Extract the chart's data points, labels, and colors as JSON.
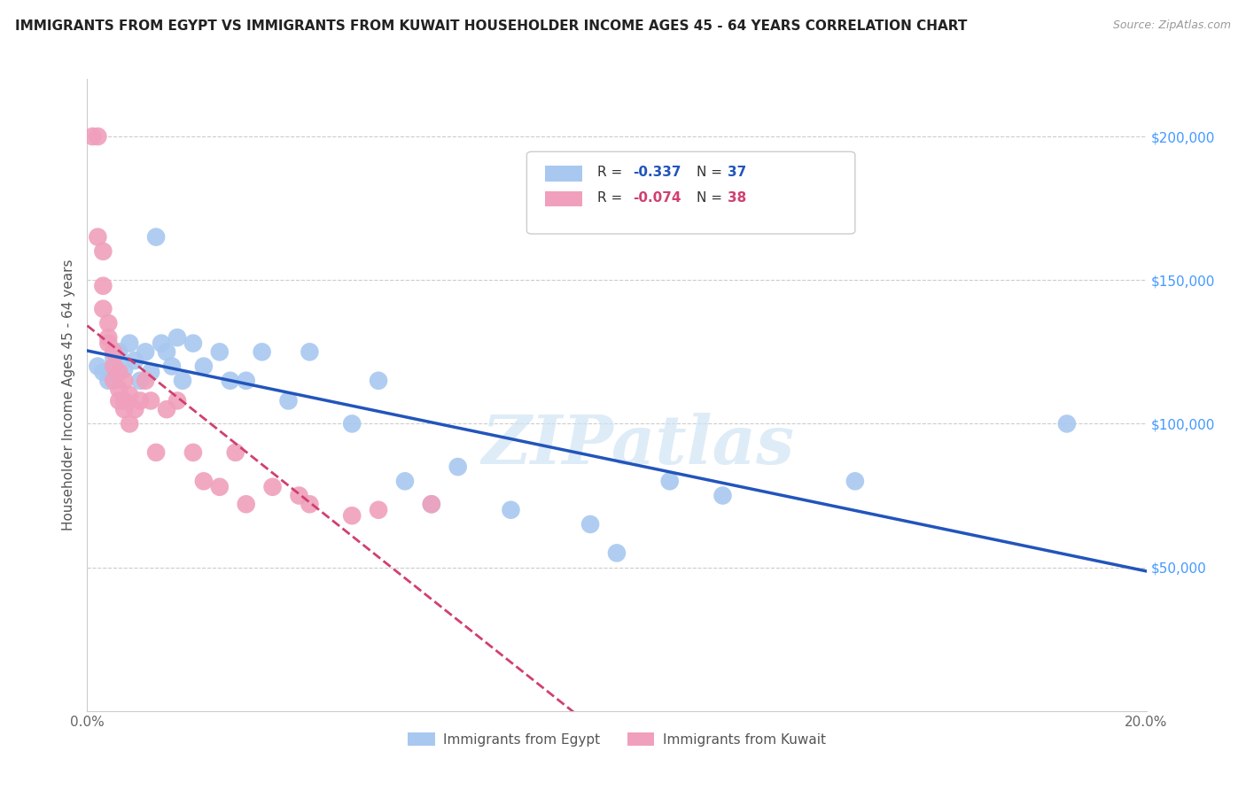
{
  "title": "IMMIGRANTS FROM EGYPT VS IMMIGRANTS FROM KUWAIT HOUSEHOLDER INCOME AGES 45 - 64 YEARS CORRELATION CHART",
  "source": "Source: ZipAtlas.com",
  "ylabel": "Householder Income Ages 45 - 64 years",
  "xmin": 0.0,
  "xmax": 0.2,
  "ymin": 0,
  "ymax": 220000,
  "egypt_color": "#a8c8f0",
  "kuwait_color": "#f0a0bc",
  "egypt_line_color": "#2255bb",
  "kuwait_line_color": "#d04070",
  "watermark": "ZIPatlas",
  "egypt_points_x": [
    0.002,
    0.003,
    0.004,
    0.005,
    0.006,
    0.007,
    0.008,
    0.009,
    0.01,
    0.011,
    0.012,
    0.013,
    0.014,
    0.015,
    0.016,
    0.017,
    0.018,
    0.02,
    0.022,
    0.025,
    0.027,
    0.03,
    0.033,
    0.038,
    0.042,
    0.05,
    0.055,
    0.06,
    0.065,
    0.07,
    0.08,
    0.095,
    0.1,
    0.11,
    0.12,
    0.145,
    0.185
  ],
  "egypt_points_y": [
    120000,
    118000,
    115000,
    123000,
    125000,
    119000,
    128000,
    122000,
    115000,
    125000,
    118000,
    165000,
    128000,
    125000,
    120000,
    130000,
    115000,
    128000,
    120000,
    125000,
    115000,
    115000,
    125000,
    108000,
    125000,
    100000,
    115000,
    80000,
    72000,
    85000,
    70000,
    65000,
    55000,
    80000,
    75000,
    80000,
    100000
  ],
  "kuwait_points_x": [
    0.001,
    0.002,
    0.002,
    0.003,
    0.003,
    0.003,
    0.004,
    0.004,
    0.004,
    0.005,
    0.005,
    0.005,
    0.006,
    0.006,
    0.006,
    0.007,
    0.007,
    0.007,
    0.008,
    0.008,
    0.009,
    0.01,
    0.011,
    0.012,
    0.013,
    0.015,
    0.017,
    0.02,
    0.022,
    0.025,
    0.028,
    0.03,
    0.035,
    0.04,
    0.042,
    0.05,
    0.055,
    0.065
  ],
  "kuwait_points_y": [
    200000,
    200000,
    165000,
    160000,
    148000,
    140000,
    135000,
    130000,
    128000,
    125000,
    120000,
    115000,
    118000,
    112000,
    108000,
    115000,
    108000,
    105000,
    110000,
    100000,
    105000,
    108000,
    115000,
    108000,
    90000,
    105000,
    108000,
    90000,
    80000,
    78000,
    90000,
    72000,
    78000,
    75000,
    72000,
    68000,
    70000,
    72000
  ],
  "grid_color": "#cccccc",
  "background_color": "#ffffff",
  "title_fontsize": 11,
  "source_fontsize": 9,
  "axis_label_fontsize": 11,
  "tick_fontsize": 11,
  "legend_fontsize": 11
}
